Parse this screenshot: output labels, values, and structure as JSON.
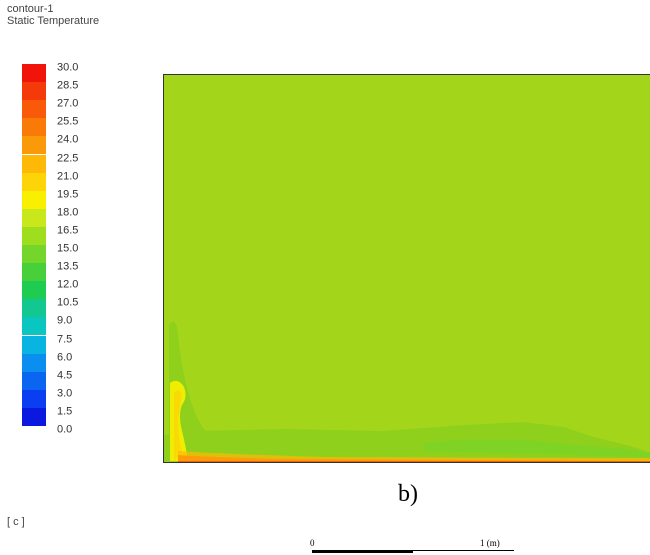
{
  "header": {
    "contour_name": "contour-1",
    "variable": "Static Temperature"
  },
  "legend": {
    "unit": "[ c ]",
    "ticks": [
      "30.0",
      "28.5",
      "27.0",
      "25.5",
      "24.0",
      "22.5",
      "21.0",
      "19.5",
      "18.0",
      "16.5",
      "15.0",
      "13.5",
      "12.0",
      "10.5",
      "9.0",
      "7.5",
      "6.0",
      "4.5",
      "3.0",
      "1.5",
      "0.0"
    ],
    "colors": [
      "#f0140a",
      "#f53a0a",
      "#f85a0a",
      "#fa7a08",
      "#fb9a08",
      "#fdb808",
      "#fdd408",
      "#f8f000",
      "#c9e81c",
      "#9fde1e",
      "#74d62a",
      "#47d03a",
      "#1fcc52",
      "#12c890",
      "#0ac6c0",
      "#0ab4e0",
      "#0a8ef0",
      "#0a66f0",
      "#0a3ef0",
      "#0a18e0"
    ]
  },
  "plot": {
    "caption": "b)",
    "field_color_hex": "#a3d61a"
  },
  "scale": {
    "label_start": "0",
    "label_end": "1 (m)"
  }
}
